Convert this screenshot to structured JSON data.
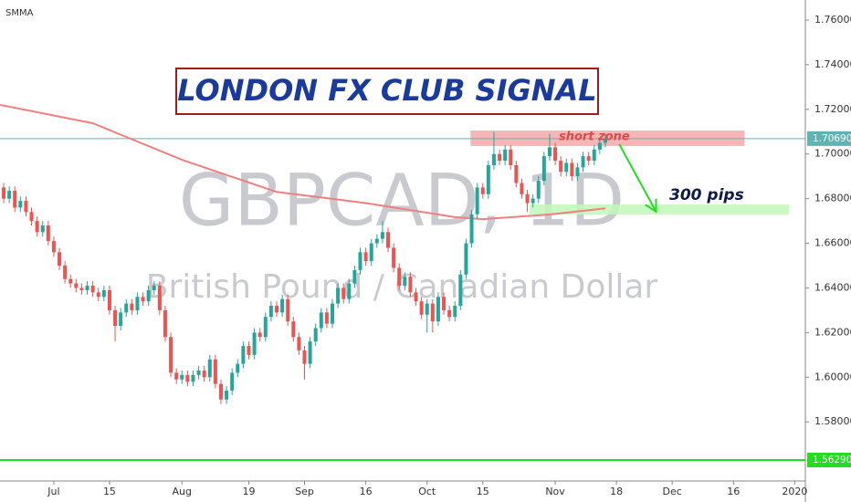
{
  "chart_data": {
    "type": "candlestick",
    "watermark": "GBPCAD, 1D",
    "watermark_subtitle": "British Pound / Canadian Dollar",
    "banner": "LONDON FX CLUB SIGNAL",
    "up_color": "#26a69a",
    "down_color": "#ef5350",
    "xlim": [
      -0.66,
      143.9
    ],
    "ylim": [
      1.5535,
      1.769
    ],
    "xticks": [
      {
        "value": 9,
        "label": "Jul"
      },
      {
        "value": 19,
        "label": "15"
      },
      {
        "value": 32,
        "label": "Aug"
      },
      {
        "value": 44,
        "label": "19"
      },
      {
        "value": 54,
        "label": "Sep"
      },
      {
        "value": 65,
        "label": "16"
      },
      {
        "value": 76,
        "label": "Oct"
      },
      {
        "value": 86,
        "label": "15"
      },
      {
        "value": 99,
        "label": "Nov"
      },
      {
        "value": 110,
        "label": "18"
      },
      {
        "value": 120,
        "label": "Dec"
      },
      {
        "value": 131,
        "label": "16"
      },
      {
        "value": 142,
        "label": "2020"
      }
    ],
    "yticks": [
      {
        "value": 1.76,
        "label": "1.76000"
      },
      {
        "value": 1.74,
        "label": "1.74000"
      },
      {
        "value": 1.72,
        "label": "1.72000"
      },
      {
        "value": 1.7,
        "label": "1.70000"
      },
      {
        "value": 1.68,
        "label": "1.68000"
      },
      {
        "value": 1.66,
        "label": "1.66000"
      },
      {
        "value": 1.64,
        "label": "1.64000"
      },
      {
        "value": 1.62,
        "label": "1.62000"
      },
      {
        "value": 1.6,
        "label": "1.60000"
      },
      {
        "value": 1.58,
        "label": "1.58000"
      }
    ],
    "open": [
      1.685,
      1.68,
      1.6835,
      1.676,
      1.679,
      1.674,
      1.67,
      1.665,
      1.668,
      1.661,
      1.656,
      1.65,
      1.644,
      1.642,
      1.64,
      1.639,
      1.641,
      1.638,
      1.636,
      1.639,
      1.63,
      1.623,
      1.629,
      1.633,
      1.63,
      1.636,
      1.634,
      1.639,
      1.641,
      1.63,
      1.618,
      1.602,
      1.599,
      1.601,
      1.598,
      1.601,
      1.603,
      1.6,
      1.608,
      1.597,
      1.59,
      1.594,
      1.602,
      1.606,
      1.614,
      1.61,
      1.62,
      1.618,
      1.627,
      1.632,
      1.629,
      1.635,
      1.625,
      1.618,
      1.612,
      1.606,
      1.616,
      1.622,
      1.629,
      1.624,
      1.633,
      1.64,
      1.635,
      1.642,
      1.648,
      1.656,
      1.652,
      1.66,
      1.662,
      1.665,
      1.658,
      1.649,
      1.641,
      1.645,
      1.638,
      1.634,
      1.628,
      1.633,
      1.625,
      1.636,
      1.63,
      1.627,
      1.632,
      1.646,
      1.66,
      1.673,
      1.685,
      1.682,
      1.695,
      1.7,
      1.697,
      1.702,
      1.695,
      1.687,
      1.682,
      1.678,
      1.68,
      1.688,
      1.699,
      1.703,
      1.697,
      1.692,
      1.696,
      1.69,
      1.694,
      1.699,
      1.697,
      1.702,
      1.705
    ],
    "high": [
      1.687,
      1.6855,
      1.6855,
      1.681,
      1.681,
      1.676,
      1.672,
      1.67,
      1.67,
      1.663,
      1.658,
      1.652,
      1.646,
      1.644,
      1.642,
      1.643,
      1.643,
      1.64,
      1.641,
      1.641,
      1.632,
      1.631,
      1.635,
      1.635,
      1.638,
      1.638,
      1.641,
      1.643,
      1.643,
      1.632,
      1.62,
      1.604,
      1.603,
      1.603,
      1.603,
      1.605,
      1.605,
      1.61,
      1.61,
      1.599,
      1.596,
      1.604,
      1.608,
      1.616,
      1.616,
      1.622,
      1.622,
      1.629,
      1.634,
      1.634,
      1.637,
      1.637,
      1.627,
      1.62,
      1.614,
      1.618,
      1.624,
      1.631,
      1.631,
      1.635,
      1.642,
      1.642,
      1.644,
      1.65,
      1.658,
      1.658,
      1.662,
      1.664,
      1.67,
      1.667,
      1.66,
      1.651,
      1.647,
      1.647,
      1.64,
      1.636,
      1.635,
      1.635,
      1.638,
      1.638,
      1.632,
      1.634,
      1.648,
      1.662,
      1.675,
      1.687,
      1.687,
      1.697,
      1.71,
      1.702,
      1.704,
      1.704,
      1.697,
      1.689,
      1.684,
      1.682,
      1.69,
      1.701,
      1.709,
      1.705,
      1.699,
      1.698,
      1.698,
      1.696,
      1.701,
      1.701,
      1.704,
      1.707,
      1.709
    ],
    "low": [
      1.678,
      1.678,
      1.674,
      1.674,
      1.672,
      1.668,
      1.663,
      1.663,
      1.659,
      1.654,
      1.648,
      1.642,
      1.64,
      1.638,
      1.637,
      1.637,
      1.636,
      1.634,
      1.634,
      1.628,
      1.616,
      1.621,
      1.627,
      1.628,
      1.628,
      1.632,
      1.632,
      1.637,
      1.628,
      1.616,
      1.6,
      1.597,
      1.597,
      1.596,
      1.596,
      1.599,
      1.598,
      1.598,
      1.595,
      1.588,
      1.588,
      1.592,
      1.6,
      1.604,
      1.608,
      1.608,
      1.616,
      1.616,
      1.625,
      1.627,
      1.627,
      1.623,
      1.616,
      1.61,
      1.599,
      1.604,
      1.614,
      1.62,
      1.622,
      1.622,
      1.631,
      1.633,
      1.633,
      1.64,
      1.646,
      1.65,
      1.65,
      1.658,
      1.66,
      1.656,
      1.647,
      1.639,
      1.639,
      1.636,
      1.632,
      1.626,
      1.62,
      1.62,
      1.623,
      1.628,
      1.625,
      1.625,
      1.63,
      1.644,
      1.658,
      1.671,
      1.68,
      1.68,
      1.693,
      1.695,
      1.695,
      1.693,
      1.685,
      1.68,
      1.674,
      1.676,
      1.678,
      1.686,
      1.697,
      1.695,
      1.69,
      1.69,
      1.688,
      1.688,
      1.692,
      1.695,
      1.695,
      1.7,
      1.703
    ],
    "close": [
      1.68,
      1.6835,
      1.676,
      1.679,
      1.674,
      1.67,
      1.665,
      1.668,
      1.661,
      1.656,
      1.65,
      1.644,
      1.642,
      1.64,
      1.639,
      1.641,
      1.638,
      1.636,
      1.639,
      1.63,
      1.623,
      1.629,
      1.633,
      1.63,
      1.636,
      1.634,
      1.639,
      1.641,
      1.63,
      1.618,
      1.602,
      1.599,
      1.601,
      1.598,
      1.601,
      1.603,
      1.6,
      1.608,
      1.597,
      1.59,
      1.594,
      1.602,
      1.606,
      1.614,
      1.61,
      1.62,
      1.618,
      1.627,
      1.632,
      1.629,
      1.635,
      1.625,
      1.618,
      1.612,
      1.606,
      1.616,
      1.622,
      1.629,
      1.624,
      1.633,
      1.64,
      1.635,
      1.642,
      1.648,
      1.656,
      1.652,
      1.66,
      1.662,
      1.665,
      1.658,
      1.649,
      1.641,
      1.645,
      1.638,
      1.634,
      1.628,
      1.633,
      1.625,
      1.636,
      1.63,
      1.627,
      1.632,
      1.646,
      1.66,
      1.673,
      1.685,
      1.682,
      1.695,
      1.7,
      1.697,
      1.702,
      1.695,
      1.687,
      1.682,
      1.678,
      1.68,
      1.688,
      1.699,
      1.703,
      1.697,
      1.692,
      1.696,
      1.69,
      1.694,
      1.699,
      1.697,
      1.702,
      1.705,
      1.7069
    ],
    "smma": {
      "name": "SMMA",
      "color": "#f08080",
      "x": [
        -0.66,
        16,
        32,
        49,
        65,
        81,
        86,
        98,
        108
      ],
      "values": [
        1.722,
        1.7138,
        1.6974,
        1.683,
        1.678,
        1.6717,
        1.6708,
        1.6729,
        1.6757
      ]
    },
    "short_zone": {
      "label": "short zone",
      "color": "#f5a9a9",
      "x": [
        83.8,
        133
      ],
      "y": [
        1.7036,
        1.7105
      ]
    },
    "target_zone": {
      "label": "300 pips",
      "color": "#c2f7b8",
      "x": [
        94.4,
        141
      ],
      "y": [
        1.6729,
        1.6774
      ]
    },
    "arrow": {
      "color": "#22dd22",
      "x": [
        110.5,
        117.1
      ],
      "y": [
        1.7044,
        1.6742
      ]
    },
    "price_line": {
      "value": 1.7069,
      "label": "1.70690",
      "color": "#5fb3b3"
    },
    "support_line": {
      "value": 1.5629,
      "label": "1.56290",
      "color": "#22dd22"
    }
  }
}
